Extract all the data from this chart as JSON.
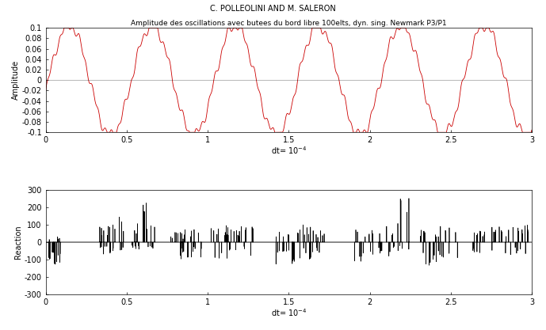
{
  "title_top": "C. POLLEOLINI AND M. SALERON",
  "plot1_title": "Amplitude des oscillations avec butees du bord libre 100elts, dyn. sing. Newmark P3/P1",
  "plot1_ylabel": "Amplitude",
  "plot2_ylabel": "Reaction",
  "plot1_xlim": [
    0,
    3
  ],
  "plot1_ylim": [
    -0.1,
    0.1
  ],
  "plot1_yticks": [
    -0.1,
    -0.08,
    -0.06,
    -0.04,
    -0.02,
    0,
    0.02,
    0.04,
    0.06,
    0.08,
    0.1
  ],
  "plot1_xticks": [
    0,
    0.5,
    1,
    1.5,
    2,
    2.5,
    3
  ],
  "plot1_color": "#cc0000",
  "plot2_xlim": [
    0,
    3
  ],
  "plot2_ylim": [
    -300,
    300
  ],
  "plot2_yticks": [
    -300,
    -200,
    -100,
    0,
    100,
    200,
    300
  ],
  "plot2_xticks": [
    0,
    0.5,
    1,
    1.5,
    2,
    2.5,
    3
  ],
  "plot2_color": "#000000",
  "background_color": "#ffffff",
  "xlabel": "dt= 10$^{-4}$",
  "title_fontsize": 6.5,
  "label_fontsize": 7,
  "tick_fontsize": 7
}
